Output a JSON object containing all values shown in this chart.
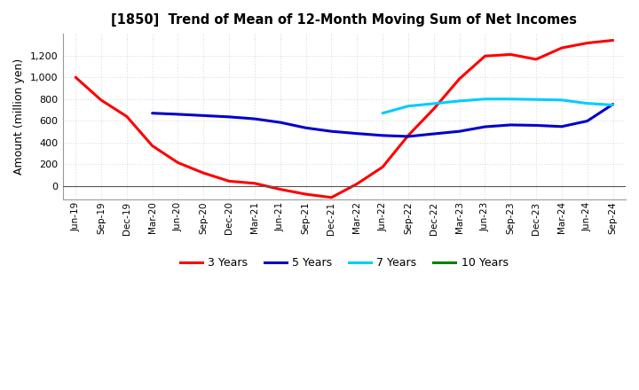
{
  "title": "[1850]  Trend of Mean of 12-Month Moving Sum of Net Incomes",
  "ylabel": "Amount (million yen)",
  "ylim": [
    -120,
    1400
  ],
  "yticks": [
    0,
    200,
    400,
    600,
    800,
    1000,
    1200
  ],
  "background_color": "#ffffff",
  "grid_color": "#b0b0b0",
  "x_labels": [
    "Jun-19",
    "Sep-19",
    "Dec-19",
    "Mar-20",
    "Jun-20",
    "Sep-20",
    "Dec-20",
    "Mar-21",
    "Jun-21",
    "Sep-21",
    "Dec-21",
    "Mar-22",
    "Jun-22",
    "Sep-22",
    "Dec-22",
    "Mar-23",
    "Jun-23",
    "Sep-23",
    "Dec-23",
    "Mar-24",
    "Jun-24",
    "Sep-24"
  ],
  "series": {
    "3 Years": {
      "color": "#ff0000",
      "linewidth": 2.2,
      "data_x": [
        "Jun-19",
        "Sep-19",
        "Dec-19",
        "Mar-20",
        "Jun-20",
        "Sep-20",
        "Dec-20",
        "Mar-21",
        "Jun-21",
        "Sep-21",
        "Dec-21",
        "Mar-22",
        "Jun-22",
        "Sep-22",
        "Dec-22",
        "Mar-23",
        "Jun-23",
        "Sep-23",
        "Dec-23",
        "Mar-24",
        "Jun-24",
        "Sep-24"
      ],
      "data_y": [
        1000,
        790,
        640,
        370,
        215,
        120,
        45,
        25,
        -30,
        -75,
        -105,
        20,
        175,
        465,
        710,
        985,
        1195,
        1210,
        1165,
        1270,
        1315,
        1340
      ]
    },
    "5 Years": {
      "color": "#0000cc",
      "linewidth": 2.2,
      "data_x": [
        "Mar-20",
        "Jun-20",
        "Sep-20",
        "Dec-20",
        "Mar-21",
        "Jun-21",
        "Sep-21",
        "Dec-21",
        "Mar-22",
        "Jun-22",
        "Sep-22",
        "Dec-22",
        "Mar-23",
        "Jun-23",
        "Sep-23",
        "Dec-23",
        "Mar-24",
        "Jun-24",
        "Sep-24"
      ],
      "data_y": [
        670,
        660,
        648,
        636,
        618,
        585,
        535,
        503,
        483,
        465,
        456,
        480,
        503,
        545,
        562,
        558,
        547,
        598,
        752
      ]
    },
    "7 Years": {
      "color": "#00ccff",
      "linewidth": 2.2,
      "data_x": [
        "Jun-22",
        "Sep-22",
        "Dec-22",
        "Mar-23",
        "Jun-23",
        "Sep-23",
        "Dec-23",
        "Mar-24",
        "Jun-24",
        "Sep-24"
      ],
      "data_y": [
        670,
        735,
        758,
        782,
        800,
        800,
        796,
        791,
        760,
        745
      ]
    },
    "10 Years": {
      "color": "#008000",
      "linewidth": 2.2,
      "data_x": [],
      "data_y": []
    }
  },
  "legend_labels": [
    "3 Years",
    "5 Years",
    "7 Years",
    "10 Years"
  ],
  "legend_colors": [
    "#ff0000",
    "#0000cc",
    "#00ccff",
    "#008000"
  ]
}
